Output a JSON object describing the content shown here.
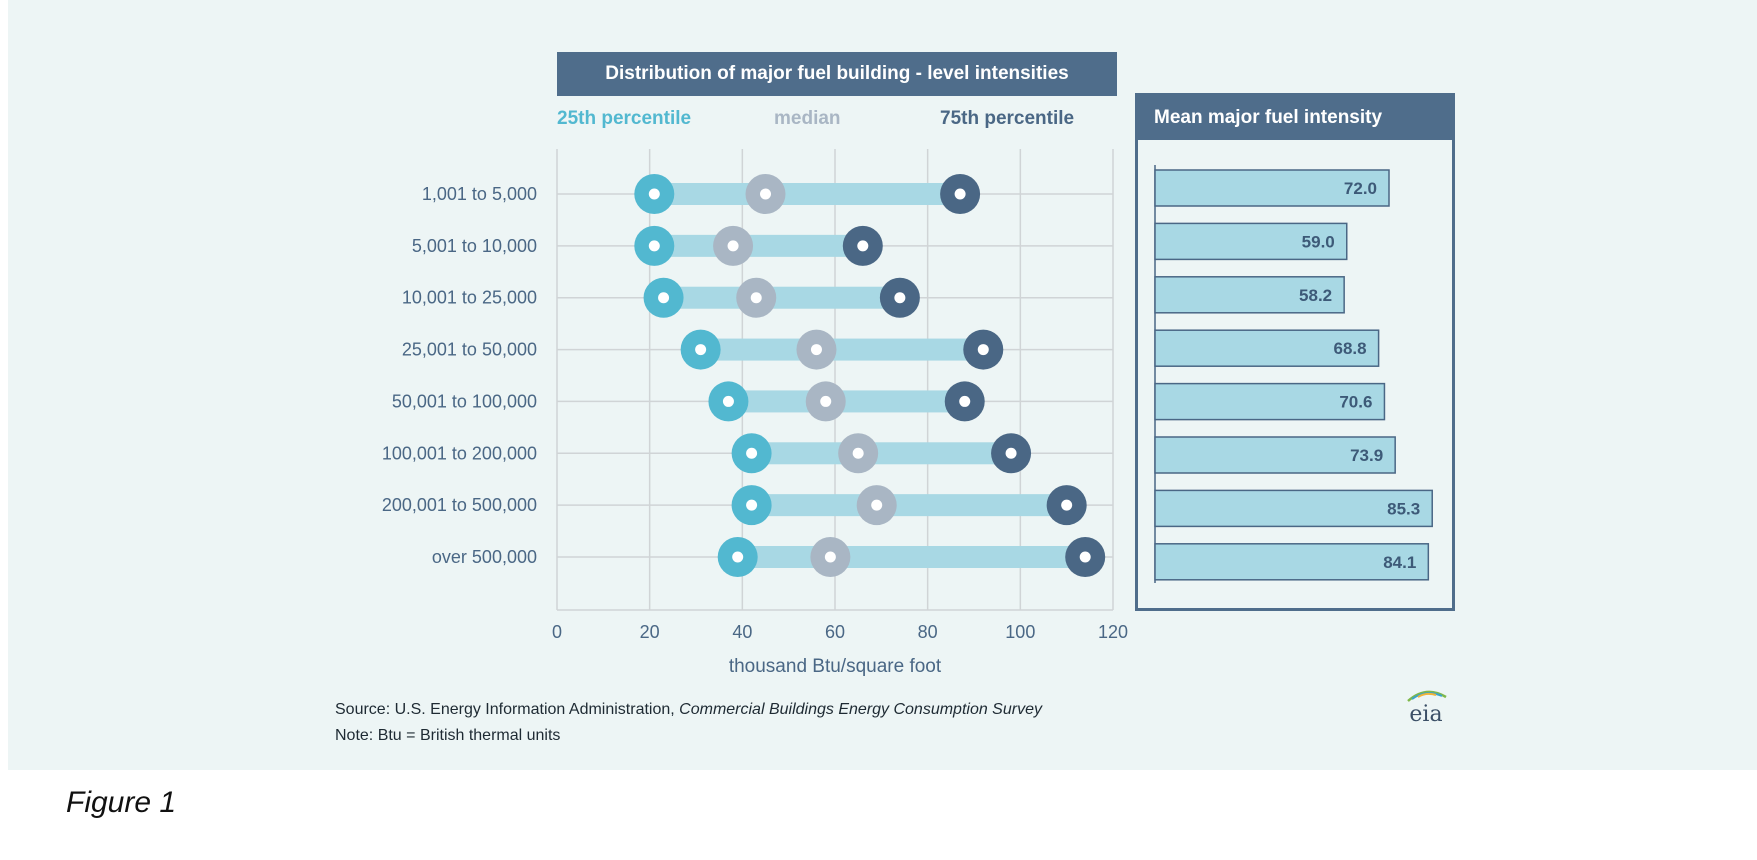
{
  "chart_data": [
    {
      "type": "dumbbell",
      "title": "Distribution of major fuel building - level intensities",
      "xlabel": "thousand Btu/square foot",
      "xlim": [
        0,
        120
      ],
      "xticks": [
        0,
        20,
        40,
        60,
        80,
        100,
        120
      ],
      "grid": true,
      "legend_placement": "top",
      "categories": [
        "1,001 to 5,000",
        "5,001 to 10,000",
        "10,001 to 25,000",
        "25,001 to 50,000",
        "50,001 to 100,000",
        "100,001 to 200,000",
        "200,001 to 500,000",
        "over 500,000"
      ],
      "series": [
        {
          "name": "25th percentile",
          "color": "#52b8d0",
          "values": [
            21,
            21,
            23,
            31,
            37,
            42,
            42,
            39
          ]
        },
        {
          "name": "median",
          "color": "#a9b6c4",
          "values": [
            45,
            38,
            43,
            56,
            58,
            65,
            69,
            59
          ]
        },
        {
          "name": "75th percentile",
          "color": "#4a6785",
          "values": [
            87,
            66,
            74,
            92,
            88,
            98,
            110,
            114
          ]
        }
      ]
    },
    {
      "type": "bar",
      "title": "Mean major fuel intensity",
      "orientation": "horizontal",
      "categories": [
        "1,001 to 5,000",
        "5,001 to 10,000",
        "10,001 to 25,000",
        "25,001 to 50,000",
        "50,001 to 100,000",
        "100,001 to 200,000",
        "200,001 to 500,000",
        "over 500,000"
      ],
      "values": [
        72.0,
        59.0,
        58.2,
        68.8,
        70.6,
        73.9,
        85.3,
        84.1
      ],
      "labels": [
        "72.0",
        "59.0",
        "58.2",
        "68.8",
        "70.6",
        "73.9",
        "85.3",
        "84.1"
      ],
      "bar_color": "#a8d8e4",
      "label_color": "#3d5a78"
    }
  ],
  "footer": {
    "source_prefix": "Source: U.S. Energy Information Administration, ",
    "source_title": "Commercial Buildings Energy Consumption Survey",
    "note": "Note: Btu = British thermal  units"
  },
  "logo": {
    "text": "eia",
    "icon": "eia-logo"
  },
  "figure_caption": "Figure 1",
  "colors": {
    "panel_background": "#edf5f5",
    "header_fill": "#4f6d8b",
    "range_bar": "#a8d8e4",
    "axis_text": "#4a6785",
    "grid": "#d0d4d6"
  }
}
